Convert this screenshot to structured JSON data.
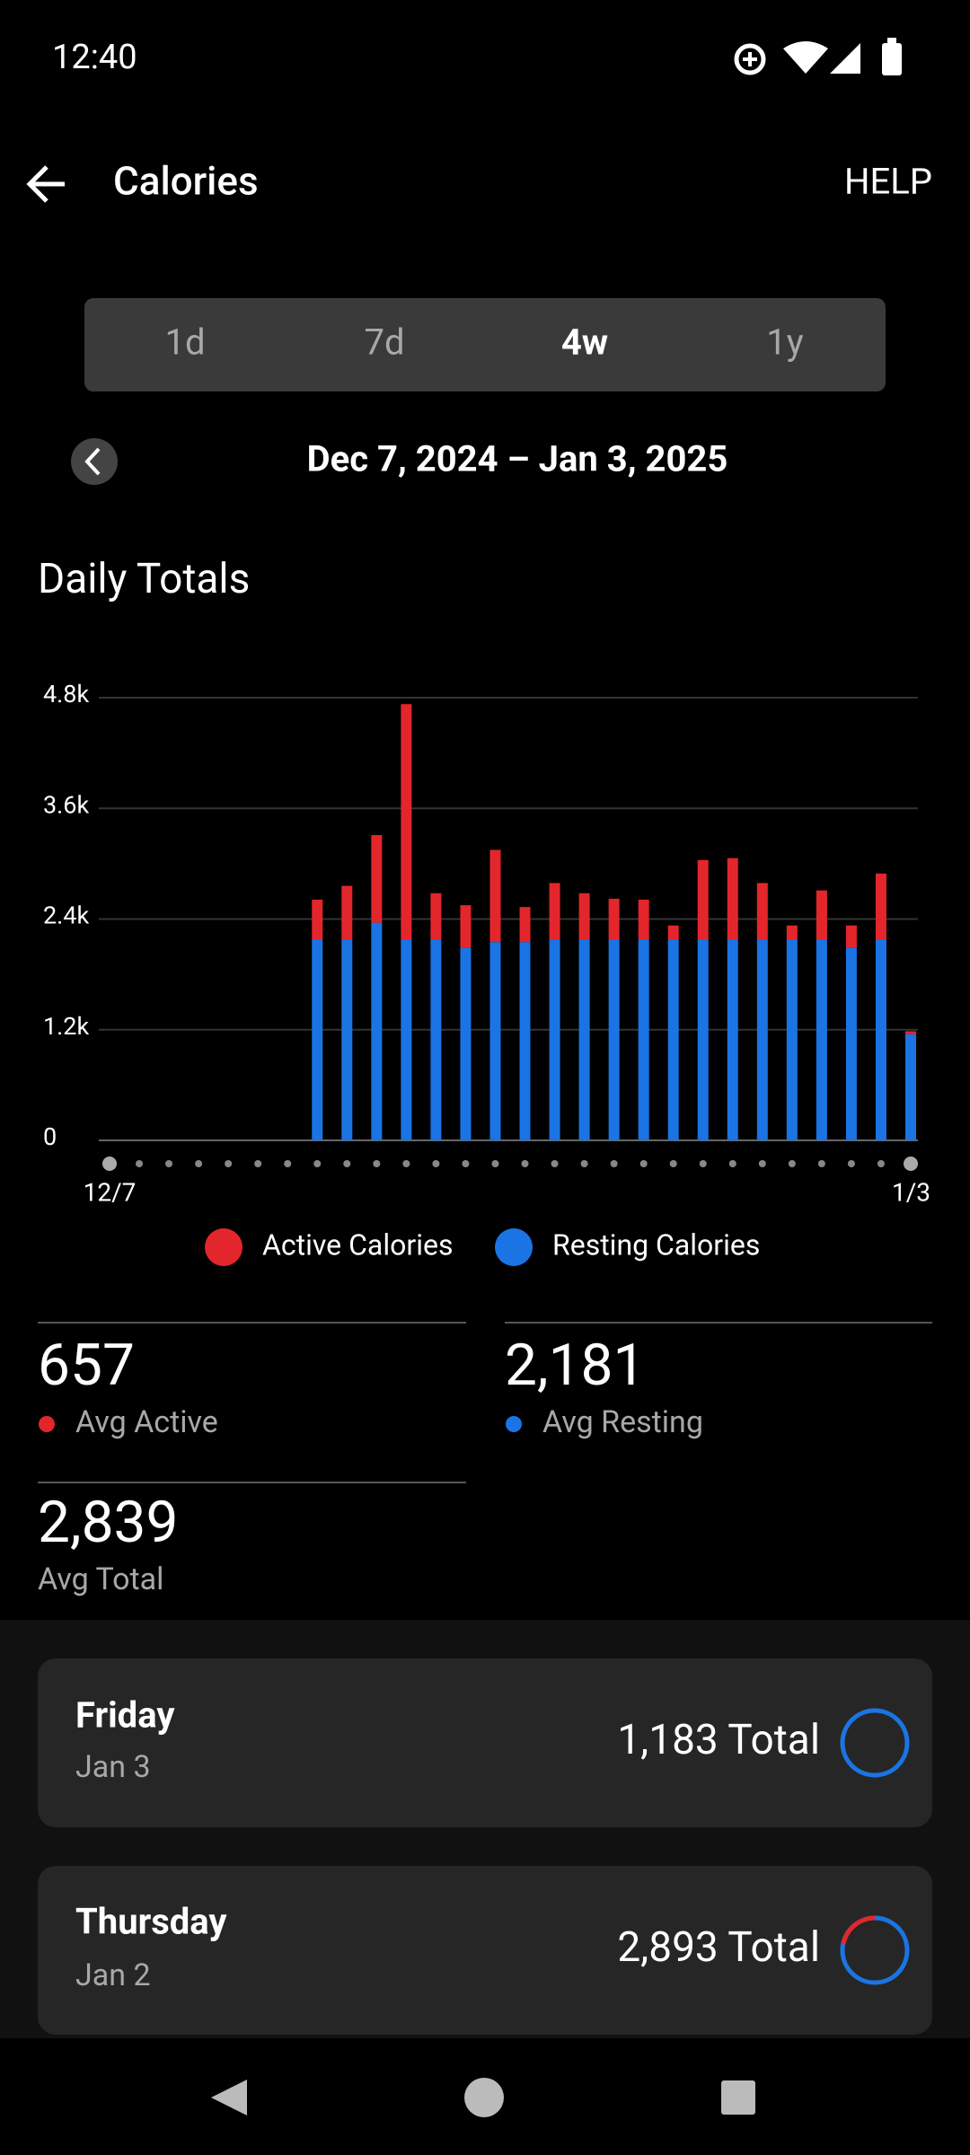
{
  "status_bar": {
    "time": "12:40"
  },
  "header": {
    "title": "Calories",
    "help": "HELP"
  },
  "tabs": [
    "1d",
    "7d",
    "4w",
    "1y"
  ],
  "date_range": "Dec 7, 2024 – Jan 3, 2025",
  "chart_data": {
    "type": "bar",
    "stacked": true,
    "title": "Daily Totals",
    "categories": [
      "12/7",
      null,
      null,
      null,
      null,
      null,
      null,
      null,
      null,
      null,
      null,
      null,
      null,
      null,
      null,
      null,
      null,
      null,
      null,
      null,
      null,
      null,
      null,
      null,
      null,
      null,
      null,
      "1/3"
    ],
    "series": [
      {
        "name": "Active Calories",
        "color": "#e3262b",
        "values": [
          null,
          null,
          null,
          null,
          null,
          null,
          null,
          430,
          580,
          950,
          2550,
          500,
          460,
          1000,
          380,
          610,
          500,
          440,
          430,
          150,
          860,
          880,
          610,
          150,
          530,
          240,
          713,
          33
        ]
      },
      {
        "name": "Resting Calories",
        "color": "#1b74e4",
        "values": [
          null,
          null,
          null,
          null,
          null,
          null,
          null,
          2180,
          2180,
          2360,
          2180,
          2180,
          2090,
          2150,
          2150,
          2180,
          2180,
          2180,
          2180,
          2180,
          2180,
          2180,
          2180,
          2180,
          2180,
          2090,
          2180,
          1150
        ]
      }
    ],
    "ylim": [
      0,
      4800
    ],
    "yticks": [
      0,
      {
        "value": 1200,
        "label": "1.2k"
      },
      {
        "value": 2400,
        "label": "2.4k"
      },
      {
        "value": 3600,
        "label": "3.6k"
      },
      {
        "value": 4800,
        "label": "4.8k"
      }
    ],
    "grid": true
  },
  "stats": [
    {
      "value": "657",
      "label": "Avg Active"
    },
    {
      "value": "2,181",
      "label": "Avg Resting"
    },
    {
      "value": "2,839",
      "label": "Avg Total"
    }
  ],
  "days": [
    {
      "day": "Friday",
      "date": "Jan 3",
      "total": "1,183 Total"
    },
    {
      "day": "Thursday",
      "date": "Jan 2",
      "total": "2,893 Total"
    }
  ]
}
